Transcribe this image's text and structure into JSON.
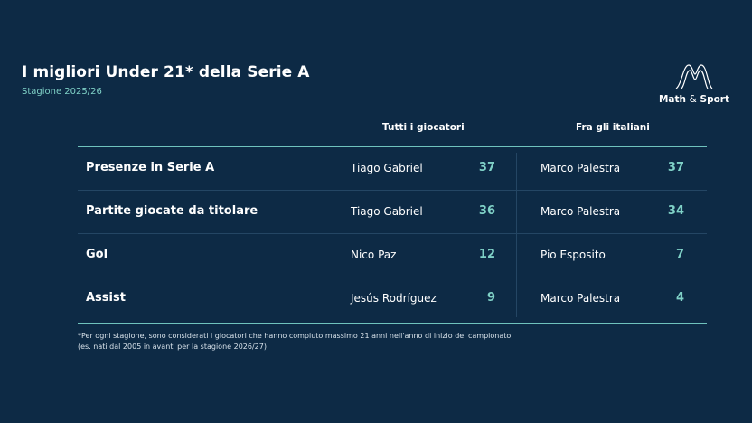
{
  "header": {
    "title": "I migliori Under 21* della Serie A",
    "subtitle": "Stagione 2025/26"
  },
  "logo": {
    "icon": "mountain-peaks-icon",
    "name_part1": "Math ",
    "name_amp": "&",
    "name_part2": " Sport"
  },
  "colors": {
    "background": "#0d2a45",
    "accent": "#7fd1c7",
    "rule": "#6fc3bd",
    "divider": "#244664"
  },
  "chart_data": {
    "type": "table",
    "columns": [
      "Tutti i giocatori",
      "Fra gli italiani"
    ],
    "rows": [
      {
        "metric": "Presenze in Serie A",
        "all_player": "Tiago Gabriel",
        "all_value": "37",
        "ita_player": "Marco Palestra",
        "ita_value": "37"
      },
      {
        "metric": "Partite giocate da titolare",
        "all_player": "Tiago Gabriel",
        "all_value": "36",
        "ita_player": "Marco Palestra",
        "ita_value": "34"
      },
      {
        "metric": "Gol",
        "all_player": "Nico Paz",
        "all_value": "12",
        "ita_player": "Pio Esposito",
        "ita_value": "7"
      },
      {
        "metric": "Assist",
        "all_player": "Jesús Rodríguez",
        "all_value": "9",
        "ita_player": "Marco Palestra",
        "ita_value": "4"
      }
    ]
  },
  "footnote": {
    "line1": "*Per ogni stagione, sono considerati i giocatori che hanno compiuto massimo 21 anni nell'anno di inizio del campionato",
    "line2": "(es. nati dal 2005 in avanti per la stagione 2026/27)"
  }
}
